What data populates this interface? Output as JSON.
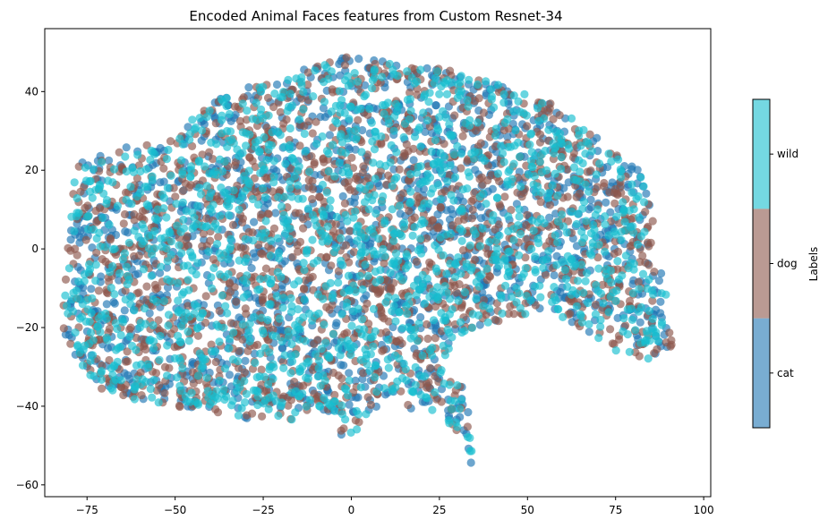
{
  "chart_data": {
    "type": "scatter",
    "title": "Encoded Animal Faces features from Custom Resnet-34",
    "xlabel": "",
    "ylabel": "",
    "xlim": [
      -87,
      102
    ],
    "ylim": [
      -63,
      56
    ],
    "x_ticks": [
      -75,
      -50,
      -25,
      0,
      25,
      50,
      75,
      100
    ],
    "y_ticks": [
      40,
      20,
      0,
      -20,
      -40,
      -60
    ],
    "grid": false,
    "colorbar": {
      "title": "Labels",
      "categories": [
        "cat",
        "dog",
        "wild"
      ],
      "colors": [
        "#1f77b4",
        "#8c564b",
        "#17becf"
      ]
    },
    "series": [
      {
        "name": "cat",
        "color": "#1f77b4",
        "point_count": 1500
      },
      {
        "name": "dog",
        "color": "#8c564b",
        "point_count": 1500
      },
      {
        "name": "wild",
        "color": "#17becf",
        "point_count": 1500
      }
    ],
    "cluster_outline": [
      [
        -82,
        -15
      ],
      [
        -80,
        5
      ],
      [
        -78,
        22
      ],
      [
        -65,
        26
      ],
      [
        -50,
        28
      ],
      [
        -45,
        33
      ],
      [
        -35,
        40
      ],
      [
        -20,
        43
      ],
      [
        -10,
        47
      ],
      [
        0,
        49
      ],
      [
        15,
        47
      ],
      [
        25,
        46
      ],
      [
        35,
        44
      ],
      [
        45,
        41
      ],
      [
        55,
        38
      ],
      [
        65,
        32
      ],
      [
        75,
        24
      ],
      [
        82,
        20
      ],
      [
        85,
        10
      ],
      [
        88,
        -5
      ],
      [
        90,
        -15
      ],
      [
        91,
        -25
      ],
      [
        85,
        -28
      ],
      [
        75,
        -27
      ],
      [
        65,
        -20
      ],
      [
        55,
        -15
      ],
      [
        45,
        -18
      ],
      [
        35,
        -20
      ],
      [
        28,
        -25
      ],
      [
        25,
        -30
      ],
      [
        30,
        -32
      ],
      [
        33,
        -38
      ],
      [
        35,
        -45
      ],
      [
        34,
        -56
      ],
      [
        32,
        -50
      ],
      [
        28,
        -45
      ],
      [
        20,
        -42
      ],
      [
        10,
        -38
      ],
      [
        3,
        -45
      ],
      [
        -2,
        -50
      ],
      [
        -5,
        -42
      ],
      [
        -10,
        -40
      ],
      [
        -20,
        -45
      ],
      [
        -35,
        -42
      ],
      [
        -45,
        -41
      ],
      [
        -55,
        -39
      ],
      [
        -65,
        -38
      ],
      [
        -73,
        -35
      ],
      [
        -78,
        -28
      ],
      [
        -82,
        -20
      ]
    ]
  }
}
